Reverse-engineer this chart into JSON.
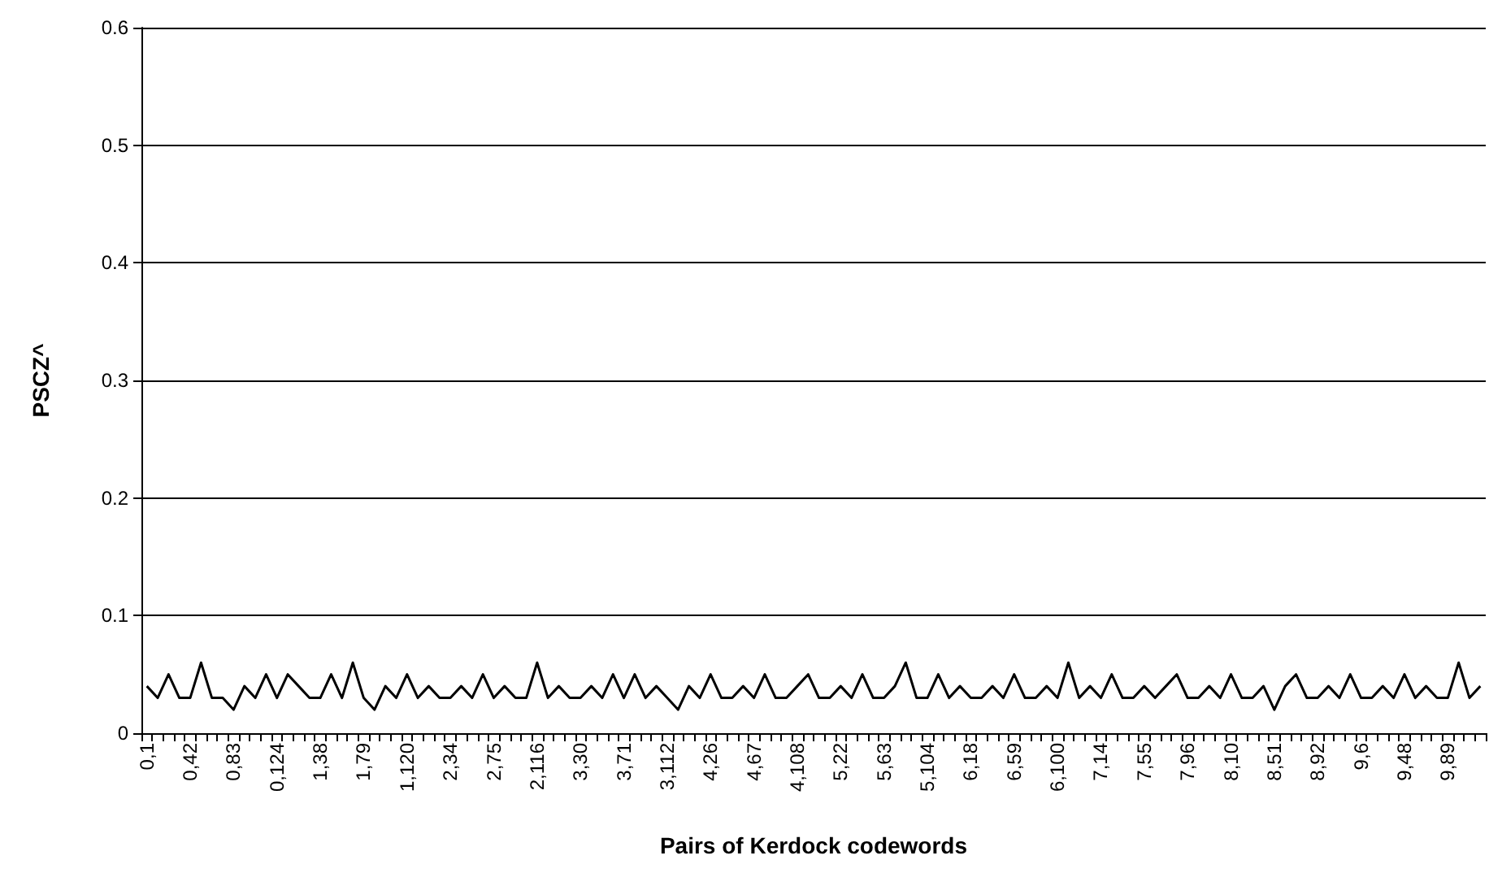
{
  "chart_data": {
    "type": "line",
    "xlabel": "Pairs of Kerdock codewords",
    "ylabel": "PSCZ^",
    "ylim": [
      0,
      0.6
    ],
    "yticks": [
      0,
      0.1,
      0.2,
      0.3,
      0.4,
      0.5,
      0.6
    ],
    "grid": "y",
    "marker": "none",
    "line_style": "solid",
    "categories": [
      "0,1",
      null,
      null,
      null,
      "0,42",
      null,
      null,
      null,
      "0,83",
      null,
      null,
      null,
      "0,124",
      null,
      null,
      null,
      "1,38",
      null,
      null,
      null,
      "1,79",
      null,
      null,
      null,
      "1,120",
      null,
      null,
      null,
      "2,34",
      null,
      null,
      null,
      "2,75",
      null,
      null,
      null,
      "2,116",
      null,
      null,
      null,
      "3,30",
      null,
      null,
      null,
      "3,71",
      null,
      null,
      null,
      "3,112",
      null,
      null,
      null,
      "4,26",
      null,
      null,
      null,
      "4,67",
      null,
      null,
      null,
      "4,108",
      null,
      null,
      null,
      "5,22",
      null,
      null,
      null,
      "5,63",
      null,
      null,
      null,
      "5,104",
      null,
      null,
      null,
      "6,18",
      null,
      null,
      null,
      "6,59",
      null,
      null,
      null,
      "6,100",
      null,
      null,
      null,
      "7,14",
      null,
      null,
      null,
      "7,55",
      null,
      null,
      null,
      "7,96",
      null,
      null,
      null,
      "8,10",
      null,
      null,
      null,
      "8,51",
      null,
      null,
      null,
      "8,92",
      null,
      null,
      null,
      "9,6",
      null,
      null,
      null,
      "9,48",
      null,
      null,
      null,
      "9,89",
      null,
      null,
      null
    ],
    "series": [
      {
        "color": "#000000",
        "values": [
          0.04,
          0.03,
          0.05,
          0.03,
          0.03,
          0.06,
          0.03,
          0.03,
          0.02,
          0.04,
          0.03,
          0.05,
          0.03,
          0.05,
          0.04,
          0.03,
          0.03,
          0.05,
          0.03,
          0.06,
          0.03,
          0.02,
          0.04,
          0.03,
          0.05,
          0.03,
          0.04,
          0.03,
          0.03,
          0.04,
          0.03,
          0.05,
          0.03,
          0.04,
          0.03,
          0.03,
          0.06,
          0.03,
          0.04,
          0.03,
          0.03,
          0.04,
          0.03,
          0.05,
          0.03,
          0.05,
          0.03,
          0.04,
          0.03,
          0.02,
          0.04,
          0.03,
          0.05,
          0.03,
          0.03,
          0.04,
          0.03,
          0.05,
          0.03,
          0.03,
          0.04,
          0.05,
          0.03,
          0.03,
          0.04,
          0.03,
          0.05,
          0.03,
          0.03,
          0.04,
          0.06,
          0.03,
          0.03,
          0.05,
          0.03,
          0.04,
          0.03,
          0.03,
          0.04,
          0.03,
          0.05,
          0.03,
          0.03,
          0.04,
          0.03,
          0.06,
          0.03,
          0.04,
          0.03,
          0.05,
          0.03,
          0.03,
          0.04,
          0.03,
          0.04,
          0.05,
          0.03,
          0.03,
          0.04,
          0.03,
          0.05,
          0.03,
          0.03,
          0.04,
          0.02,
          0.04,
          0.05,
          0.03,
          0.03,
          0.04,
          0.03,
          0.05,
          0.03,
          0.03,
          0.04,
          0.03,
          0.05,
          0.03,
          0.04,
          0.03,
          0.03,
          0.06,
          0.03,
          0.04
        ]
      }
    ]
  }
}
